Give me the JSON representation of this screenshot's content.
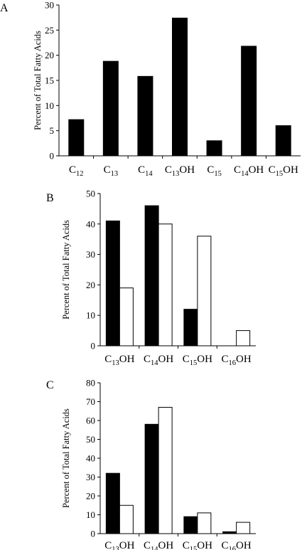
{
  "chart_data": [
    {
      "type": "bar",
      "panel": "A",
      "ylabel": "Percent of Total Fatty Acids",
      "ylim": [
        0,
        30
      ],
      "yticks": [
        0,
        5,
        10,
        15,
        20,
        25,
        30
      ],
      "categories": [
        {
          "base": "C",
          "sub": "12",
          "suffix": ""
        },
        {
          "base": "C",
          "sub": "13",
          "suffix": ""
        },
        {
          "base": "C",
          "sub": "14",
          "suffix": ""
        },
        {
          "base": "C",
          "sub": "13",
          "suffix": "OH"
        },
        {
          "base": "C",
          "sub": "15",
          "suffix": ""
        },
        {
          "base": "C",
          "sub": "14",
          "suffix": "OH"
        },
        {
          "base": "C",
          "sub": "15",
          "suffix": "OH"
        }
      ],
      "series": [
        {
          "color": "#000000",
          "values": [
            7.2,
            18.8,
            15.8,
            27.4,
            3.0,
            21.8,
            6.0
          ]
        }
      ]
    },
    {
      "type": "bar",
      "panel": "B",
      "ylabel": "Percent of Total Fatty Acids",
      "ylim": [
        0,
        50
      ],
      "yticks": [
        0,
        10,
        20,
        30,
        40,
        50
      ],
      "categories": [
        {
          "base": "C",
          "sub": "13",
          "suffix": "OH"
        },
        {
          "base": "C",
          "sub": "14",
          "suffix": "OH"
        },
        {
          "base": "C",
          "sub": "15",
          "suffix": "OH"
        },
        {
          "base": "C",
          "sub": "16",
          "suffix": "OH"
        }
      ],
      "series": [
        {
          "color": "#000000",
          "values": [
            41,
            46,
            12,
            0
          ]
        },
        {
          "color": "#ffffff",
          "values": [
            19,
            40,
            36,
            5
          ]
        }
      ]
    },
    {
      "type": "bar",
      "panel": "C",
      "ylabel": "Percent of Total Fatty Acids",
      "ylim": [
        0,
        80
      ],
      "yticks": [
        0,
        10,
        20,
        30,
        40,
        50,
        60,
        70,
        80
      ],
      "categories": [
        {
          "base": "C",
          "sub": "13",
          "suffix": "OH"
        },
        {
          "base": "C",
          "sub": "14",
          "suffix": "OH"
        },
        {
          "base": "C",
          "sub": "15",
          "suffix": "OH"
        },
        {
          "base": "C",
          "sub": "16",
          "suffix": "OH"
        }
      ],
      "series": [
        {
          "color": "#000000",
          "values": [
            32,
            58,
            9,
            1
          ]
        },
        {
          "color": "#ffffff",
          "values": [
            15,
            67,
            11,
            6
          ]
        }
      ]
    }
  ]
}
